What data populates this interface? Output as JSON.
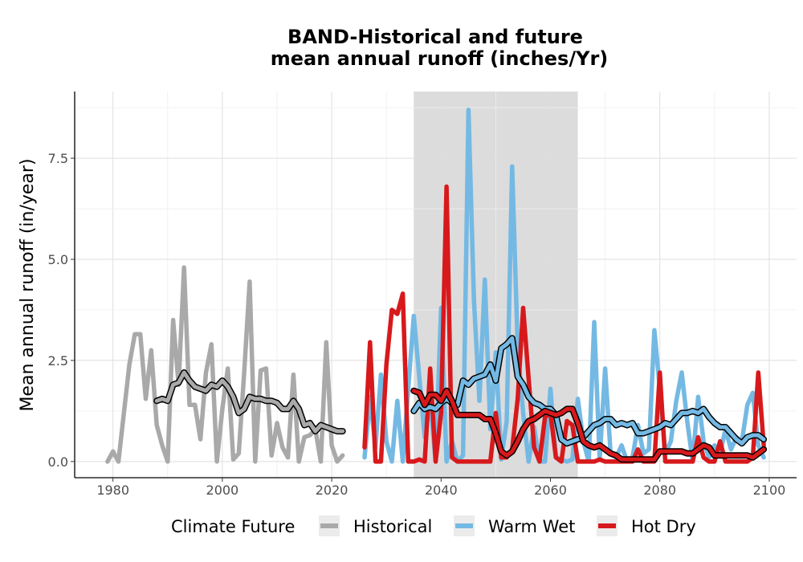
{
  "chart_data": {
    "type": "line",
    "title_line1": "BAND-Historical and future",
    "title_line2": "mean annual runoff (inches/Yr)",
    "xlabel": "",
    "ylabel": "Mean annual runoff (in/year)",
    "xlim": [
      1973,
      2105
    ],
    "ylim": [
      -0.4,
      9.15
    ],
    "x_ticks": [
      1980,
      2000,
      2020,
      2040,
      2060,
      2080,
      2100
    ],
    "x_tick_labels": [
      "1980",
      "2000",
      "2020",
      "2040",
      "2060",
      "2080",
      "2100"
    ],
    "y_ticks": [
      0,
      2.5,
      5,
      7.5
    ],
    "y_tick_labels": [
      "0.0",
      "2.5",
      "5.0",
      "7.5"
    ],
    "grid": true,
    "shaded_period": [
      2035,
      2065
    ],
    "legend": {
      "title": "Climate Future",
      "position": "bottom",
      "entries": [
        "Historical",
        "Warm Wet",
        "Hot Dry"
      ]
    },
    "series": [
      {
        "name": "Historical",
        "color": "#a9a9a9",
        "x": [
          1979,
          1980,
          1981,
          1982,
          1983,
          1984,
          1985,
          1986,
          1987,
          1988,
          1989,
          1990,
          1991,
          1992,
          1993,
          1994,
          1995,
          1996,
          1997,
          1998,
          1999,
          2000,
          2001,
          2002,
          2003,
          2004,
          2005,
          2006,
          2007,
          2008,
          2009,
          2010,
          2011,
          2012,
          2013,
          2014,
          2015,
          2016,
          2017,
          2018,
          2019,
          2020,
          2021,
          2022
        ],
        "values": [
          0,
          0.25,
          0,
          1.2,
          2.4,
          3.15,
          3.15,
          1.55,
          2.75,
          0.9,
          0.4,
          0,
          3.5,
          1.9,
          4.8,
          1.4,
          1.4,
          0.55,
          2.2,
          2.9,
          0,
          1.3,
          2.3,
          0.05,
          0.2,
          2.2,
          4.45,
          0,
          2.25,
          2.3,
          0.15,
          0.95,
          0.35,
          0.1,
          2.15,
          0,
          0.6,
          0.65,
          0.8,
          0,
          2.95,
          0.4,
          0,
          0.15
        ]
      },
      {
        "name": "Historical (smoothed)",
        "color": "#a9a9a9",
        "smoothed": true,
        "x": [
          1988,
          1989,
          1990,
          1991,
          1992,
          1993,
          1994,
          1995,
          1996,
          1997,
          1998,
          1999,
          2000,
          2001,
          2002,
          2003,
          2004,
          2005,
          2006,
          2007,
          2008,
          2009,
          2010,
          2011,
          2012,
          2013,
          2014,
          2015,
          2016,
          2017,
          2018,
          2019,
          2020,
          2021,
          2022
        ],
        "values": [
          1.5,
          1.55,
          1.5,
          1.9,
          1.95,
          2.2,
          2.0,
          1.85,
          1.8,
          1.75,
          1.9,
          1.85,
          2.0,
          1.85,
          1.6,
          1.2,
          1.3,
          1.6,
          1.55,
          1.55,
          1.5,
          1.5,
          1.45,
          1.3,
          1.3,
          1.5,
          1.3,
          0.9,
          0.95,
          0.75,
          0.9,
          0.85,
          0.8,
          0.75,
          0.75
        ]
      },
      {
        "name": "Warm Wet",
        "color": "#74b9e3",
        "x": [
          2026,
          2027,
          2028,
          2029,
          2030,
          2031,
          2032,
          2033,
          2034,
          2035,
          2036,
          2037,
          2038,
          2039,
          2040,
          2041,
          2042,
          2043,
          2044,
          2045,
          2046,
          2047,
          2048,
          2049,
          2050,
          2051,
          2052,
          2053,
          2054,
          2055,
          2056,
          2057,
          2058,
          2059,
          2060,
          2061,
          2062,
          2063,
          2064,
          2065,
          2066,
          2067,
          2068,
          2069,
          2070,
          2071,
          2072,
          2073,
          2074,
          2075,
          2076,
          2077,
          2078,
          2079,
          2080,
          2081,
          2082,
          2083,
          2084,
          2085,
          2086,
          2087,
          2088,
          2089,
          2090,
          2091,
          2092,
          2093,
          2094,
          2095,
          2096,
          2097,
          2098,
          2099
        ],
        "values": [
          0.1,
          1.6,
          0.35,
          2.15,
          0.5,
          0,
          1.5,
          0,
          1.8,
          3.6,
          2.1,
          0.6,
          1.5,
          0,
          3.8,
          0,
          0.5,
          0,
          0.15,
          8.7,
          4.0,
          1.5,
          4.5,
          0.8,
          2.7,
          0.05,
          1.0,
          7.3,
          2.8,
          1.2,
          0,
          0.85,
          0,
          0,
          1.8,
          0.1,
          0.05,
          0,
          0.05,
          1.55,
          0.5,
          0,
          3.45,
          0.05,
          2.3,
          0.2,
          0.1,
          0.4,
          0,
          0.1,
          0.9,
          0.2,
          0.3,
          3.25,
          1.8,
          0.2,
          0.5,
          1.5,
          2.2,
          1.0,
          0,
          1.6,
          0.5,
          0.1,
          0.4,
          0.2,
          0.8,
          0.3,
          0.6,
          0.5,
          1.4,
          1.7,
          0.4,
          0.1
        ]
      },
      {
        "name": "Warm Wet (smoothed)",
        "color": "#74b9e3",
        "smoothed": true,
        "x": [
          2035,
          2036,
          2037,
          2038,
          2039,
          2040,
          2041,
          2042,
          2043,
          2044,
          2045,
          2046,
          2047,
          2048,
          2049,
          2050,
          2051,
          2052,
          2053,
          2054,
          2055,
          2056,
          2057,
          2058,
          2059,
          2060,
          2061,
          2062,
          2063,
          2064,
          2065,
          2066,
          2067,
          2068,
          2069,
          2070,
          2071,
          2072,
          2073,
          2074,
          2075,
          2076,
          2077,
          2078,
          2079,
          2080,
          2081,
          2082,
          2083,
          2084,
          2085,
          2086,
          2087,
          2088,
          2089,
          2090,
          2091,
          2092,
          2093,
          2094,
          2095,
          2096,
          2097,
          2098,
          2099
        ],
        "values": [
          1.25,
          1.45,
          1.3,
          1.35,
          1.3,
          1.45,
          1.55,
          1.45,
          1.4,
          2.0,
          1.9,
          2.05,
          2.1,
          2.15,
          2.4,
          2.0,
          2.8,
          2.9,
          3.05,
          2.1,
          1.9,
          1.6,
          1.45,
          1.4,
          1.3,
          1.3,
          1.15,
          0.55,
          0.45,
          0.5,
          0.55,
          0.6,
          0.75,
          0.9,
          0.95,
          1.05,
          1.05,
          0.9,
          0.95,
          0.9,
          0.95,
          0.7,
          0.7,
          0.75,
          0.8,
          0.85,
          0.95,
          0.9,
          1.05,
          1.2,
          1.2,
          1.25,
          1.2,
          1.3,
          1.1,
          0.95,
          0.85,
          0.85,
          0.7,
          0.55,
          0.45,
          0.6,
          0.65,
          0.65,
          0.55
        ]
      },
      {
        "name": "Hot Dry",
        "color": "#d7191c",
        "x": [
          2026,
          2027,
          2028,
          2029,
          2030,
          2031,
          2032,
          2033,
          2034,
          2035,
          2036,
          2037,
          2038,
          2039,
          2040,
          2041,
          2042,
          2043,
          2044,
          2045,
          2046,
          2047,
          2048,
          2049,
          2050,
          2051,
          2052,
          2053,
          2054,
          2055,
          2056,
          2057,
          2058,
          2059,
          2060,
          2061,
          2062,
          2063,
          2064,
          2065,
          2066,
          2067,
          2068,
          2069,
          2070,
          2071,
          2072,
          2073,
          2074,
          2075,
          2076,
          2077,
          2078,
          2079,
          2080,
          2081,
          2082,
          2083,
          2084,
          2085,
          2086,
          2087,
          2088,
          2089,
          2090,
          2091,
          2092,
          2093,
          2094,
          2095,
          2096,
          2097,
          2098,
          2099
        ],
        "values": [
          0.35,
          2.95,
          0,
          0,
          2.4,
          3.75,
          3.65,
          4.15,
          0,
          0,
          0.05,
          0,
          2.3,
          0,
          1.2,
          6.8,
          0.1,
          0,
          0,
          0,
          0,
          0,
          0,
          0,
          1.2,
          0.1,
          0.1,
          0.3,
          1.55,
          3.8,
          2.05,
          0.35,
          0,
          1.1,
          1.2,
          0.1,
          0,
          1.0,
          0.9,
          0,
          0,
          0,
          0,
          0.05,
          0,
          0,
          0,
          0,
          0,
          0,
          0.3,
          0,
          0,
          0,
          2.2,
          0,
          0,
          0,
          0,
          0,
          0,
          0.6,
          0.1,
          0,
          0,
          0.5,
          0,
          0,
          0,
          0,
          0,
          0.1,
          2.2,
          0.4
        ]
      },
      {
        "name": "Hot Dry (smoothed)",
        "color": "#d7191c",
        "smoothed": true,
        "x": [
          2035,
          2036,
          2037,
          2038,
          2039,
          2040,
          2041,
          2042,
          2043,
          2044,
          2045,
          2046,
          2047,
          2048,
          2049,
          2050,
          2051,
          2052,
          2053,
          2054,
          2055,
          2056,
          2057,
          2058,
          2059,
          2060,
          2061,
          2062,
          2063,
          2064,
          2065,
          2066,
          2067,
          2068,
          2069,
          2070,
          2071,
          2072,
          2073,
          2074,
          2075,
          2076,
          2077,
          2078,
          2079,
          2080,
          2081,
          2082,
          2083,
          2084,
          2085,
          2086,
          2087,
          2088,
          2089,
          2090,
          2091,
          2092,
          2093,
          2094,
          2095,
          2096,
          2097,
          2098,
          2099
        ],
        "values": [
          1.75,
          1.7,
          1.4,
          1.65,
          1.65,
          1.5,
          1.75,
          1.5,
          1.15,
          1.15,
          1.15,
          1.15,
          1.15,
          1.05,
          1.05,
          0.7,
          0.25,
          0.15,
          0.25,
          0.5,
          0.8,
          1.0,
          1.05,
          1.15,
          1.25,
          1.2,
          1.15,
          1.2,
          1.3,
          1.3,
          0.95,
          0.5,
          0.4,
          0.35,
          0.4,
          0.3,
          0.2,
          0.15,
          0.05,
          0.05,
          0.05,
          0.05,
          0.05,
          0.05,
          0.05,
          0.25,
          0.25,
          0.25,
          0.25,
          0.25,
          0.2,
          0.2,
          0.3,
          0.4,
          0.35,
          0.15,
          0.15,
          0.15,
          0.15,
          0.15,
          0.15,
          0.15,
          0.1,
          0.2,
          0.3
        ]
      }
    ]
  }
}
